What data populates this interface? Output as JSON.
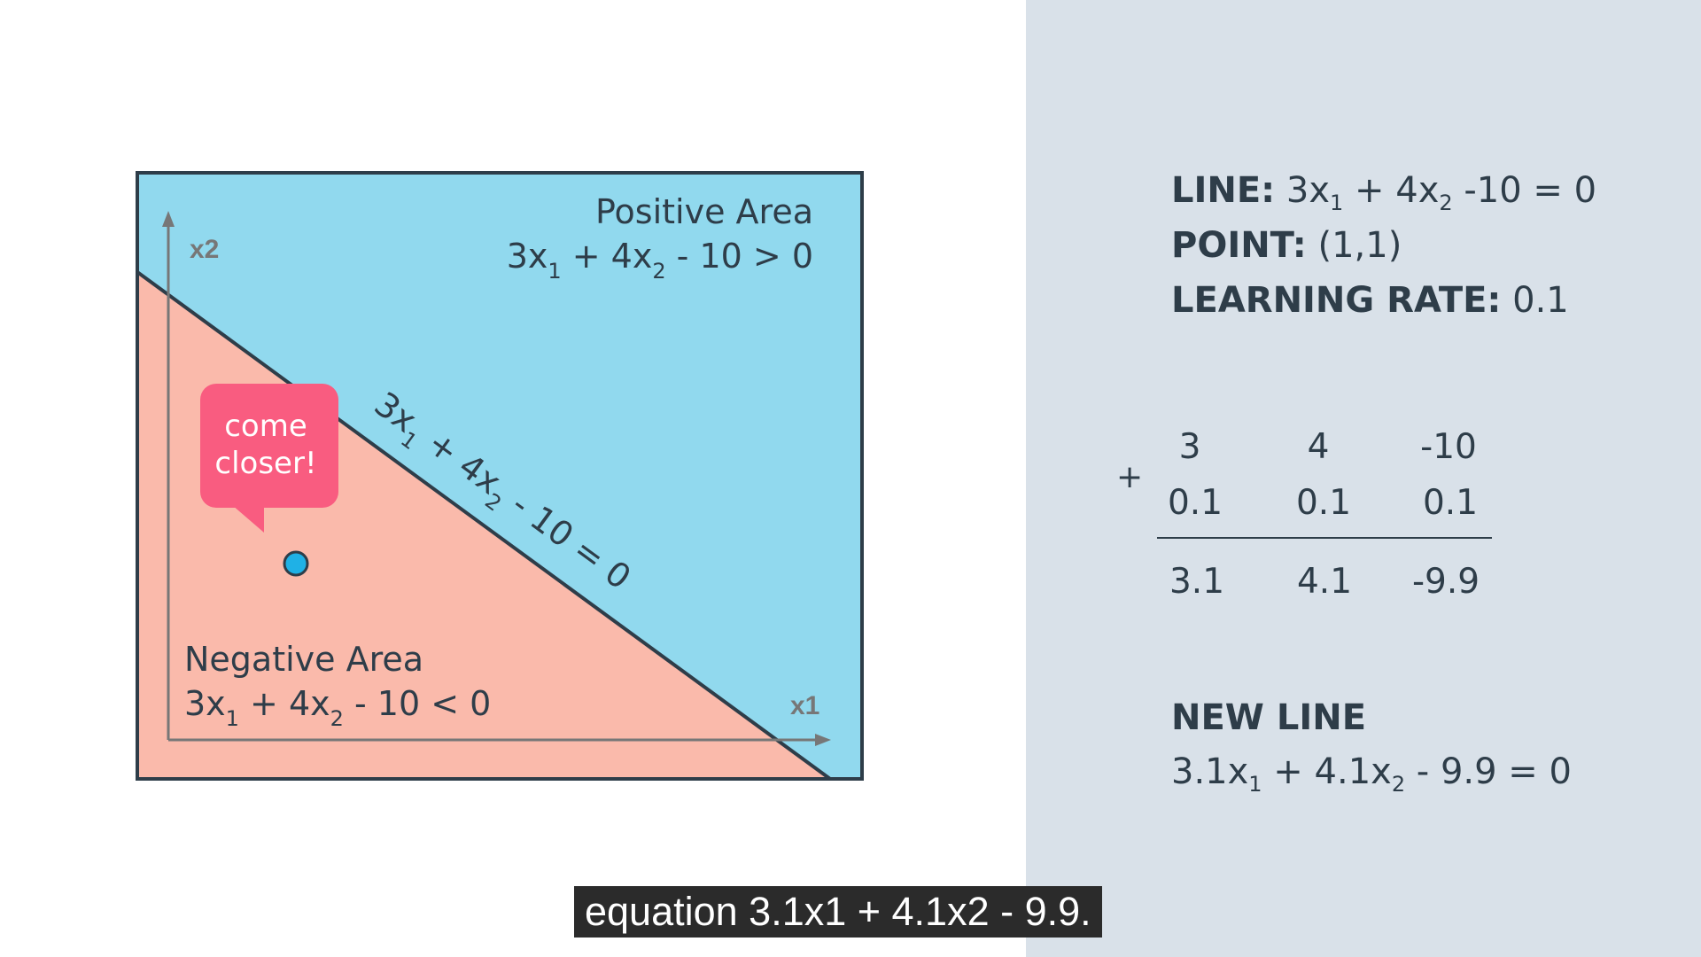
{
  "diagram": {
    "positive_title": "Positive Area",
    "positive_eq": {
      "a": "3x",
      "s1": "1",
      "b": " + 4x",
      "s2": "2",
      "c": " - 10 > 0"
    },
    "negative_title": "Negative Area",
    "negative_eq": {
      "a": "3x",
      "s1": "1",
      "b": " + 4x",
      "s2": "2",
      "c": " - 10 < 0"
    },
    "line_label": {
      "a": "3x",
      "s1": "1",
      "b": " + 4x",
      "s2": "2",
      "c": " - 10 = 0"
    },
    "x1_axis": "x1",
    "x2_axis": "x2",
    "bubble": {
      "line1": "come",
      "line2": "closer!"
    },
    "colors": {
      "positive": "#91d9ee",
      "negative": "#fabaab",
      "bubble": "#f95c80",
      "point": "#1fb1e6",
      "outline": "#2e3d49"
    }
  },
  "info": {
    "line_label": "LINE:",
    "line_eq": {
      "a": " 3x",
      "s1": "1",
      "b": " + 4x",
      "s2": "2",
      "c": " -10 = 0"
    },
    "point_label": "POINT:",
    "point_value": " (1,1)",
    "lr_label": "LEARNING RATE:",
    "lr_value": " 0.1"
  },
  "calc": {
    "plus": "+",
    "row1": [
      "3",
      "4",
      "-10"
    ],
    "row2": [
      "0.1",
      "0.1",
      "0.1"
    ],
    "result": [
      "3.1",
      "4.1",
      "-9.9"
    ]
  },
  "new_line": {
    "label": "NEW LINE",
    "eq": {
      "a": "3.1x",
      "s1": "1",
      "b": " + 4.1x",
      "s2": "2",
      "c": " - 9.9 = 0"
    }
  },
  "caption": "equation 3.1x1 + 4.1x2 - 9.9."
}
